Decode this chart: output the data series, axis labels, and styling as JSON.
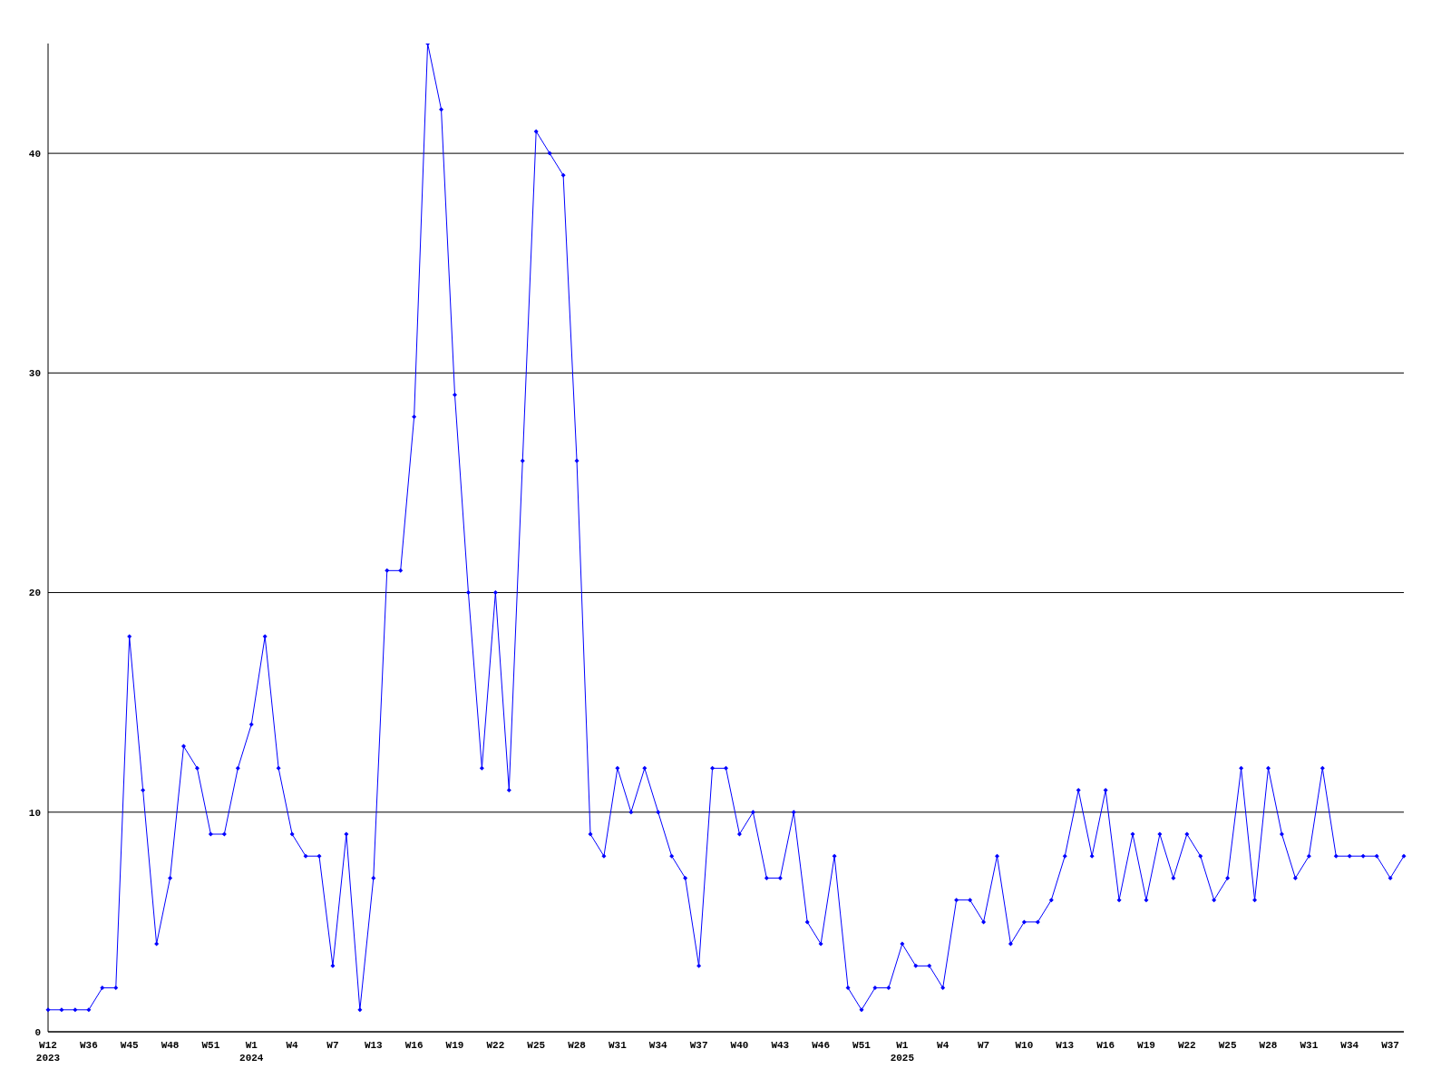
{
  "chart_data": {
    "type": "line",
    "categories": [
      "W12\n2023",
      null,
      null,
      "W36",
      null,
      null,
      "W45",
      null,
      null,
      "W48",
      null,
      null,
      "W51",
      null,
      null,
      "W1\n2024",
      null,
      null,
      "W4",
      null,
      null,
      "W7",
      null,
      null,
      "W13",
      null,
      null,
      "W16",
      null,
      null,
      "W19",
      null,
      null,
      "W22",
      null,
      null,
      "W25",
      null,
      null,
      "W28",
      null,
      null,
      "W31",
      null,
      null,
      "W34",
      null,
      null,
      "W37",
      null,
      null,
      "W40",
      null,
      null,
      "W43",
      null,
      null,
      "W46",
      null,
      null,
      "W51",
      null,
      null,
      "W1\n2025",
      null,
      null,
      "W4",
      null,
      null,
      "W7",
      null,
      null,
      "W10",
      null,
      null,
      "W13",
      null,
      null,
      "W16",
      null,
      null,
      "W19",
      null,
      null,
      "W22",
      null,
      null,
      "W25",
      null,
      null,
      "W28",
      null,
      null,
      "W31",
      null,
      null,
      "W34",
      null,
      null,
      "W37",
      null
    ],
    "series": [
      {
        "color": "#0000ff",
        "values": [
          1,
          1,
          1,
          1,
          2,
          2,
          18,
          11,
          4,
          7,
          13,
          12,
          9,
          9,
          12,
          14,
          18,
          12,
          9,
          8,
          8,
          3,
          9,
          1,
          7,
          21,
          21,
          28,
          45,
          42,
          29,
          20,
          12,
          20,
          11,
          26,
          41,
          40,
          39,
          26,
          9,
          8,
          12,
          10,
          12,
          10,
          8,
          7,
          3,
          12,
          12,
          9,
          10,
          7,
          7,
          10,
          5,
          4,
          8,
          2,
          1,
          2,
          2,
          4,
          3,
          3,
          2,
          6,
          6,
          5,
          8,
          4,
          5,
          5,
          6,
          8,
          11,
          8,
          11,
          6,
          9,
          6,
          9,
          7,
          9,
          8,
          6,
          7,
          12,
          6,
          12,
          9,
          7,
          8,
          12,
          8,
          8,
          8,
          8,
          7,
          8
        ]
      }
    ],
    "ylim": [
      0,
      45
    ],
    "yticks": [
      0,
      10,
      20,
      30,
      40
    ],
    "grid": "y",
    "marker": "diamond",
    "line_style": "solid"
  }
}
